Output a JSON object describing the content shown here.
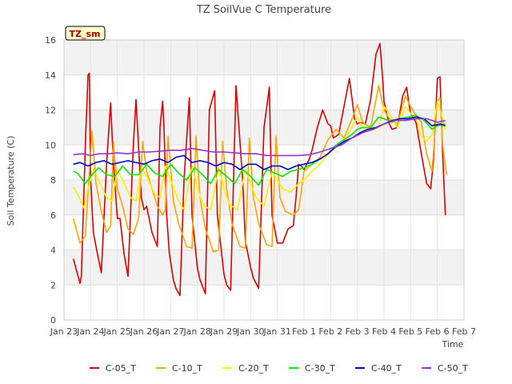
{
  "chart_data": {
    "type": "line",
    "title": "TZ SoilVue C Temperature",
    "xlabel": "Time",
    "ylabel": "Soil Temperature (C)",
    "annotation": "TZ_sm",
    "x_ticks": [
      "Jan 23",
      "Jan 24",
      "Jan 25",
      "Jan 26",
      "Jan 27",
      "Jan 28",
      "Jan 29",
      "Jan 30",
      "Jan 31",
      "Feb 1",
      "Feb 2",
      "Feb 3",
      "Feb 4",
      "Feb 5",
      "Feb 6",
      "Feb 7"
    ],
    "y_ticks": [
      0,
      2,
      4,
      6,
      8,
      10,
      12,
      14,
      16
    ],
    "xlim_days": [
      0,
      15
    ],
    "ylim": [
      0,
      16
    ],
    "grid": true,
    "background_bands": true,
    "legend_position": "bottom",
    "series": [
      {
        "name": "C-05_T",
        "color": "#dd0000",
        "x": [
          0.35,
          0.6,
          0.65,
          0.8,
          0.9,
          0.95,
          1.0,
          1.1,
          1.25,
          1.4,
          1.6,
          1.75,
          1.85,
          2.0,
          2.1,
          2.25,
          2.4,
          2.6,
          2.7,
          2.9,
          3.0,
          3.1,
          3.3,
          3.5,
          3.6,
          3.7,
          3.75,
          3.85,
          3.95,
          4.1,
          4.2,
          4.35,
          4.5,
          4.7,
          4.8,
          5.0,
          5.1,
          5.3,
          5.45,
          5.65,
          5.75,
          6.0,
          6.1,
          6.25,
          6.45,
          6.7,
          6.8,
          7.0,
          7.1,
          7.3,
          7.5,
          7.7,
          7.8,
          8.0,
          8.2,
          8.4,
          8.6,
          8.7,
          8.8,
          8.9,
          9.0,
          9.2,
          9.3,
          9.5,
          9.7,
          9.9,
          10.0,
          10.1,
          10.3,
          10.5,
          10.7,
          10.9,
          11.0,
          11.1,
          11.3,
          11.5,
          11.7,
          11.85,
          11.95,
          12.0,
          12.1,
          12.2,
          12.3,
          12.5,
          12.7,
          12.85,
          12.95,
          13.0,
          13.2,
          13.4,
          13.6,
          13.75,
          13.85,
          14.0,
          14.1,
          14.2,
          14.3
        ],
        "y": [
          3.5,
          2.1,
          2.5,
          10.0,
          14.0,
          14.1,
          8.0,
          5.0,
          3.8,
          2.7,
          9.0,
          12.4,
          9.0,
          5.8,
          5.8,
          3.8,
          2.5,
          10.0,
          12.6,
          7.0,
          6.3,
          6.5,
          5.0,
          4.2,
          11.0,
          12.5,
          11.0,
          6.0,
          3.8,
          2.3,
          1.8,
          1.4,
          8.0,
          12.7,
          6.0,
          3.0,
          2.3,
          1.5,
          12.0,
          13.1,
          6.0,
          2.6,
          2.0,
          1.7,
          13.4,
          8.0,
          4.5,
          3.0,
          2.4,
          1.8,
          11.0,
          13.3,
          6.0,
          4.4,
          4.4,
          5.2,
          5.4,
          7.0,
          8.9,
          8.8,
          8.6,
          9.2,
          9.7,
          11.0,
          12.0,
          11.2,
          11.1,
          10.4,
          10.6,
          12.2,
          13.8,
          11.5,
          11.2,
          11.3,
          11.2,
          12.6,
          15.2,
          15.8,
          13.8,
          12.5,
          11.8,
          11.2,
          10.9,
          11.0,
          12.8,
          13.3,
          12.2,
          11.8,
          11.3,
          9.5,
          7.8,
          7.5,
          9.0,
          13.8,
          13.9,
          9.5,
          6.0
        ]
      },
      {
        "name": "C-10_T",
        "color": "#ffa500",
        "x": [
          0.35,
          0.6,
          0.8,
          0.95,
          1.05,
          1.2,
          1.4,
          1.6,
          1.75,
          1.85,
          2.0,
          2.2,
          2.4,
          2.6,
          2.8,
          2.95,
          3.1,
          3.3,
          3.5,
          3.7,
          3.8,
          3.9,
          4.1,
          4.3,
          4.6,
          4.8,
          4.95,
          5.1,
          5.3,
          5.6,
          5.8,
          5.95,
          6.1,
          6.3,
          6.6,
          6.8,
          6.95,
          7.1,
          7.3,
          7.6,
          7.8,
          7.95,
          8.1,
          8.3,
          8.6,
          8.8,
          9.0,
          9.3,
          9.6,
          9.9,
          10.2,
          10.5,
          10.8,
          11.0,
          11.2,
          11.5,
          11.8,
          12.0,
          12.2,
          12.5,
          12.8,
          13.0,
          13.2,
          13.4,
          13.6,
          13.8,
          14.0,
          14.1,
          14.2,
          14.35
        ],
        "y": [
          5.8,
          4.4,
          4.8,
          8.5,
          10.8,
          7.8,
          6.2,
          5.0,
          5.4,
          10.2,
          7.5,
          6.5,
          5.2,
          4.9,
          5.8,
          10.2,
          8.5,
          7.5,
          6.5,
          6.0,
          6.3,
          10.5,
          6.8,
          5.5,
          4.2,
          4.1,
          10.5,
          7.0,
          5.2,
          3.9,
          4.0,
          10.2,
          7.5,
          5.5,
          4.2,
          4.1,
          10.4,
          7.0,
          5.5,
          4.3,
          4.2,
          10.5,
          7.0,
          6.2,
          6.0,
          6.3,
          8.5,
          8.9,
          9.3,
          10.3,
          10.9,
          10.4,
          11.5,
          12.3,
          11.3,
          11.0,
          13.4,
          12.0,
          11.5,
          11.2,
          12.8,
          12.2,
          11.7,
          11.3,
          9.5,
          8.5,
          12.5,
          12.7,
          10.0,
          8.3
        ]
      },
      {
        "name": "C-20_T",
        "color": "#ffee00",
        "x": [
          0.35,
          0.5,
          0.75,
          0.9,
          1.1,
          1.3,
          1.6,
          1.8,
          2.0,
          2.2,
          2.5,
          2.7,
          2.9,
          3.1,
          3.4,
          3.6,
          3.8,
          4.0,
          4.3,
          4.5,
          4.8,
          5.0,
          5.2,
          5.5,
          5.8,
          6.0,
          6.2,
          6.5,
          6.8,
          7.0,
          7.2,
          7.5,
          7.8,
          8.0,
          8.2,
          8.5,
          8.8,
          9.0,
          9.3,
          9.6,
          9.9,
          10.2,
          10.5,
          10.8,
          11.0,
          11.2,
          11.5,
          11.8,
          12.0,
          12.2,
          12.5,
          12.8,
          13.0,
          13.2,
          13.4,
          13.6,
          13.8,
          14.0,
          14.15,
          14.3
        ],
        "y": [
          7.6,
          7.2,
          6.4,
          7.5,
          8.6,
          8.0,
          7.0,
          6.8,
          8.6,
          8.0,
          7.0,
          6.8,
          8.7,
          8.2,
          7.2,
          7.0,
          8.8,
          8.0,
          6.8,
          6.3,
          8.8,
          7.6,
          6.6,
          6.3,
          8.7,
          7.5,
          6.6,
          6.3,
          8.6,
          7.8,
          7.0,
          6.5,
          8.5,
          8.0,
          7.5,
          7.3,
          7.8,
          8.0,
          8.5,
          8.9,
          9.5,
          10.0,
          10.3,
          11.0,
          11.6,
          11.0,
          10.8,
          11.0,
          12.2,
          11.8,
          11.0,
          12.2,
          11.8,
          11.5,
          10.5,
          10.2,
          10.6,
          12.5,
          11.8,
          10.9
        ]
      },
      {
        "name": "C-30_T",
        "color": "#00ee00",
        "x": [
          0.35,
          0.5,
          0.8,
          1.0,
          1.3,
          1.6,
          1.9,
          2.2,
          2.5,
          2.8,
          3.1,
          3.4,
          3.7,
          4.0,
          4.3,
          4.6,
          4.9,
          5.2,
          5.5,
          5.8,
          6.1,
          6.4,
          6.7,
          7.0,
          7.3,
          7.6,
          7.9,
          8.2,
          8.5,
          8.8,
          9.0,
          9.3,
          9.6,
          9.9,
          10.2,
          10.5,
          10.8,
          11.0,
          11.2,
          11.5,
          11.8,
          12.0,
          12.3,
          12.6,
          12.9,
          13.2,
          13.5,
          13.8,
          14.0,
          14.3
        ],
        "y": [
          8.5,
          8.4,
          7.8,
          8.2,
          8.7,
          8.3,
          8.2,
          8.8,
          8.3,
          8.3,
          8.9,
          8.4,
          8.2,
          8.9,
          8.4,
          8.0,
          8.7,
          8.3,
          7.8,
          8.6,
          8.2,
          7.8,
          8.6,
          8.2,
          7.7,
          8.6,
          8.4,
          8.2,
          8.5,
          8.6,
          8.7,
          8.9,
          9.2,
          9.5,
          10.0,
          10.3,
          10.6,
          10.9,
          11.0,
          11.0,
          11.6,
          11.5,
          11.3,
          11.5,
          11.6,
          11.7,
          11.4,
          10.9,
          11.1,
          11.2
        ]
      },
      {
        "name": "C-40_T",
        "color": "#0000cc",
        "x": [
          0.35,
          0.6,
          0.9,
          1.2,
          1.5,
          1.8,
          2.1,
          2.4,
          2.7,
          3.0,
          3.3,
          3.6,
          3.9,
          4.2,
          4.5,
          4.8,
          5.1,
          5.4,
          5.7,
          6.0,
          6.3,
          6.6,
          6.9,
          7.2,
          7.5,
          7.8,
          8.1,
          8.4,
          8.7,
          9.0,
          9.3,
          9.6,
          9.9,
          10.2,
          10.5,
          10.8,
          11.1,
          11.4,
          11.7,
          12.0,
          12.3,
          12.6,
          12.9,
          13.2,
          13.5,
          13.8,
          14.1,
          14.3
        ],
        "y": [
          8.9,
          9.0,
          8.8,
          9.0,
          9.1,
          8.9,
          9.0,
          9.1,
          9.0,
          8.9,
          9.1,
          9.2,
          9.0,
          9.3,
          9.4,
          9.0,
          9.1,
          9.0,
          8.8,
          9.0,
          8.9,
          8.6,
          8.9,
          8.9,
          8.6,
          8.8,
          8.8,
          8.6,
          8.8,
          8.9,
          9.0,
          9.2,
          9.5,
          9.9,
          10.2,
          10.4,
          10.7,
          10.9,
          11.0,
          11.2,
          11.4,
          11.5,
          11.5,
          11.6,
          11.5,
          11.1,
          11.2,
          11.1
        ]
      },
      {
        "name": "C-50_T",
        "color": "#9933cc",
        "x": [
          0.35,
          0.7,
          1.0,
          1.3,
          1.7,
          2.0,
          2.4,
          2.8,
          3.2,
          3.6,
          4.0,
          4.4,
          4.8,
          5.2,
          5.6,
          6.0,
          6.4,
          6.8,
          7.2,
          7.6,
          8.0,
          8.4,
          8.8,
          9.2,
          9.6,
          10.0,
          10.4,
          10.8,
          11.2,
          11.6,
          12.0,
          12.4,
          12.8,
          13.2,
          13.6,
          14.0,
          14.3
        ],
        "y": [
          9.45,
          9.5,
          9.4,
          9.5,
          9.5,
          9.55,
          9.5,
          9.6,
          9.6,
          9.65,
          9.7,
          9.7,
          9.8,
          9.7,
          9.6,
          9.6,
          9.55,
          9.5,
          9.5,
          9.4,
          9.4,
          9.4,
          9.4,
          9.45,
          9.6,
          9.8,
          10.0,
          10.4,
          10.7,
          10.9,
          11.2,
          11.4,
          11.4,
          11.5,
          11.5,
          11.3,
          11.4
        ]
      }
    ]
  }
}
